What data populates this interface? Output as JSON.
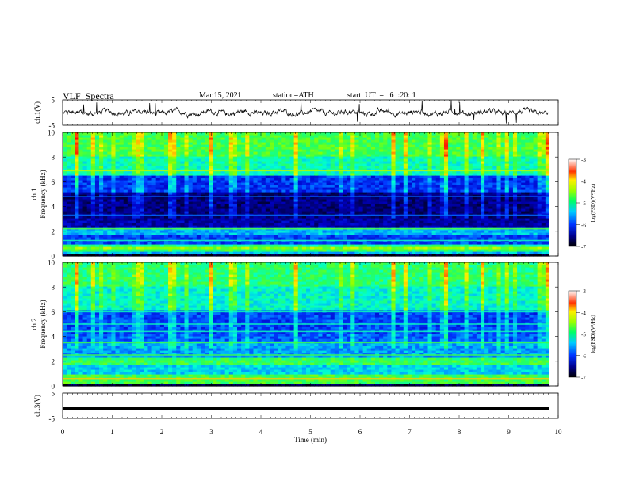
{
  "header": {
    "title": "VLF  Spectra",
    "date": "Mar.15, 2021",
    "station": "station=ATH",
    "start": "start  UT  =   6  :20: 1"
  },
  "chart_data": [
    {
      "type": "line",
      "id": "ch1-waveform",
      "ylabel": "ch.1(V)",
      "xlim": [
        0,
        10
      ],
      "ylim": [
        -5,
        5
      ],
      "yticks": [
        "5",
        "-5"
      ],
      "series": [
        {
          "color": "#000000"
        }
      ],
      "note_trace": "noisy waveform centered near 0 V with sparse spikes"
    },
    {
      "type": "heatmap",
      "id": "ch1-spectrogram",
      "ylabel": "ch.1  Frequency  (kHz)",
      "xlim": [
        0,
        10
      ],
      "ylim": [
        0,
        10
      ],
      "yticks": [
        "0",
        "2",
        "4",
        "6",
        "8",
        "10"
      ],
      "colorbar": {
        "label": "log(PSD)(V²/Hz)",
        "ticks": [
          "-3",
          "-4",
          "-5",
          "-6",
          "-7"
        ],
        "range": [
          -7,
          -3
        ]
      }
    },
    {
      "type": "heatmap",
      "id": "ch2-spectrogram",
      "ylabel": "ch.2  Frequency  (kHz)",
      "xlim": [
        0,
        10
      ],
      "ylim": [
        0,
        10
      ],
      "yticks": [
        "0",
        "2",
        "4",
        "6",
        "8",
        "10"
      ],
      "colorbar": {
        "label": "log(PSD)(V²/Hz)",
        "ticks": [
          "-3",
          "-4",
          "-5",
          "-6",
          "-7"
        ],
        "range": [
          -7,
          -3
        ]
      }
    },
    {
      "type": "line",
      "id": "ch3-waveform",
      "ylabel": "ch.3(V)",
      "xlim": [
        0,
        10
      ],
      "ylim": [
        -5,
        5
      ],
      "yticks": [
        "5",
        "-5"
      ],
      "series": [
        {
          "color": "#000000"
        }
      ],
      "note_trace": "flat thick line at about -1 V"
    }
  ],
  "x_axis": {
    "label": "Time  (min)",
    "ticks": [
      "0",
      "1",
      "2",
      "3",
      "4",
      "5",
      "6",
      "7",
      "8",
      "9",
      "10"
    ]
  },
  "colors": {
    "scale": [
      "#000066",
      "#0000cc",
      "#0033ff",
      "#00aaff",
      "#00ffcc",
      "#33ff66",
      "#99ff00",
      "#ffff00",
      "#ff9900",
      "#ff0000",
      "#ffffff"
    ]
  }
}
